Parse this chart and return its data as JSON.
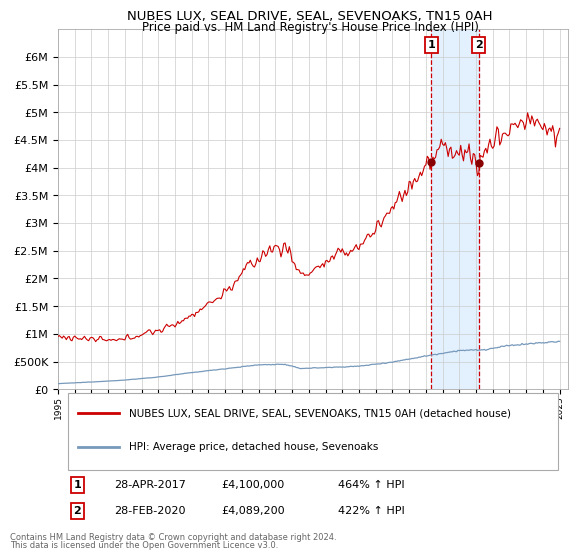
{
  "title": "NUBES LUX, SEAL DRIVE, SEAL, SEVENOAKS, TN15 0AH",
  "subtitle": "Price paid vs. HM Land Registry's House Price Index (HPI)",
  "ylim": [
    0,
    6500000
  ],
  "yticks": [
    0,
    500000,
    1000000,
    1500000,
    2000000,
    2500000,
    3000000,
    3500000,
    4000000,
    4500000,
    5000000,
    5500000,
    6000000
  ],
  "ytick_labels": [
    "£0",
    "£500K",
    "£1M",
    "£1.5M",
    "£2M",
    "£2.5M",
    "£3M",
    "£3.5M",
    "£4M",
    "£4.5M",
    "£5M",
    "£5.5M",
    "£6M"
  ],
  "hpi_color": "#7799bb",
  "price_color": "#cc0000",
  "transaction1": {
    "label": "1",
    "date": "28-APR-2017",
    "price": 4100000,
    "pct": "464% ↑ HPI",
    "x": 2017.32
  },
  "transaction2": {
    "label": "2",
    "date": "28-FEB-2020",
    "price": 4089200,
    "pct": "422% ↑ HPI",
    "x": 2020.16
  },
  "legend_property": "NUBES LUX, SEAL DRIVE, SEAL, SEVENOAKS, TN15 0AH (detached house)",
  "legend_hpi": "HPI: Average price, detached house, Sevenoaks",
  "footnote": "Contains HM Land Registry data © Crown copyright and database right 2024.\nThis data is licensed under the Open Government Licence v3.0.",
  "background_color": "#ffffff",
  "grid_color": "#cccccc",
  "highlight_box_color": "#ddeeff",
  "xlim_start": 1995,
  "xlim_end": 2025.5
}
